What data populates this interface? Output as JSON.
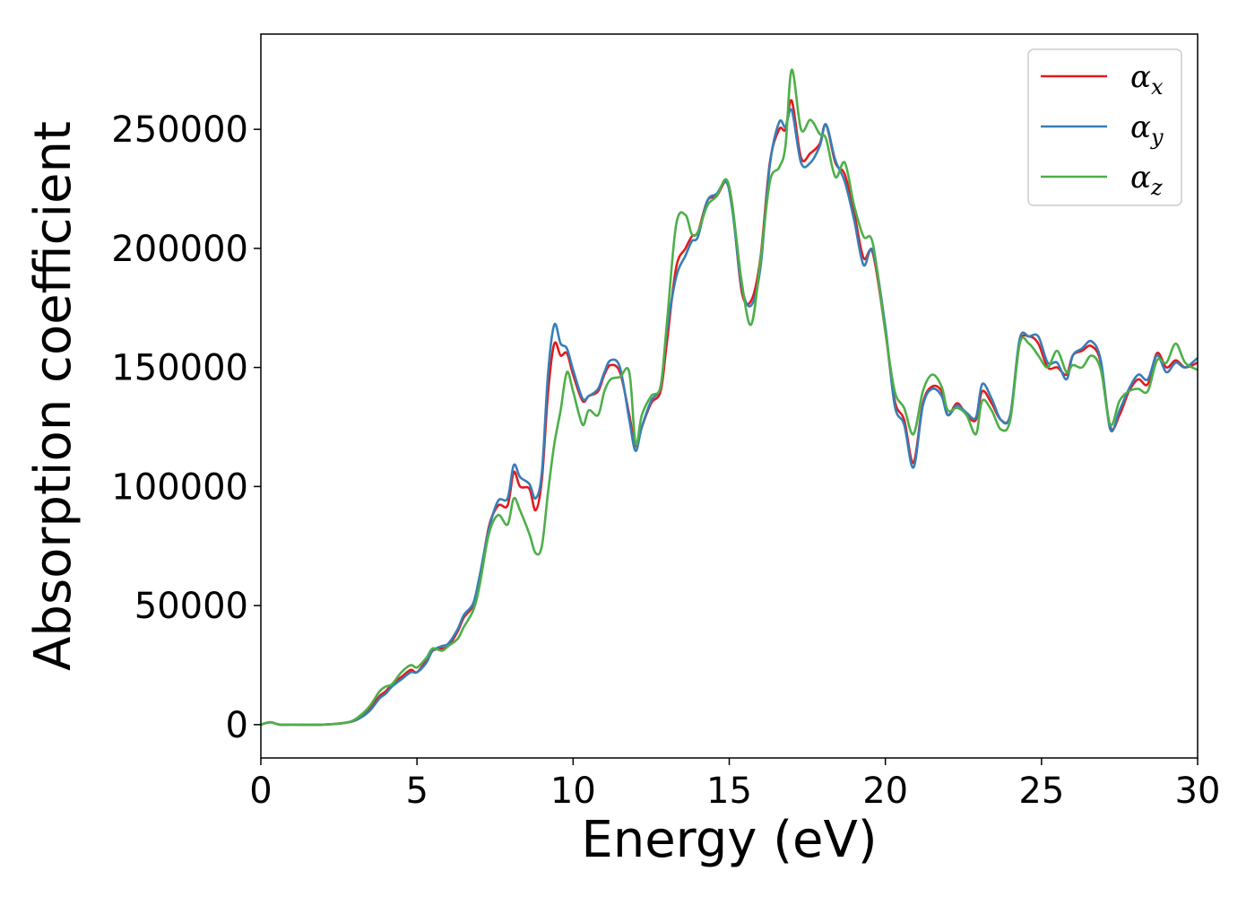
{
  "chart_data": {
    "type": "line",
    "title": "",
    "xlabel": "Energy (eV)",
    "ylabel": "Absorption coefficient",
    "xlim": [
      0,
      30
    ],
    "ylim": [
      -14000,
      290000
    ],
    "xticks": [
      0,
      5,
      10,
      15,
      20,
      25,
      30
    ],
    "yticks": [
      0,
      50000,
      100000,
      150000,
      200000,
      250000
    ],
    "grid": false,
    "legend_position": "top-right",
    "series": [
      {
        "name": "α_x",
        "legend_symbol": "α",
        "legend_subscript": "x",
        "color": "#e41a1c",
        "x": [
          0,
          0.3,
          0.6,
          1.0,
          2.0,
          2.8,
          3.2,
          3.5,
          3.8,
          4.0,
          4.2,
          4.5,
          4.8,
          5.0,
          5.3,
          5.5,
          5.8,
          6.0,
          6.3,
          6.5,
          6.8,
          7.0,
          7.3,
          7.6,
          7.9,
          8.1,
          8.3,
          8.6,
          8.8,
          9.0,
          9.2,
          9.4,
          9.6,
          9.8,
          10.0,
          10.3,
          10.5,
          10.8,
          11.0,
          11.2,
          11.5,
          11.8,
          12.0,
          12.2,
          12.5,
          12.8,
          13.0,
          13.3,
          13.6,
          13.8,
          14.0,
          14.3,
          14.6,
          14.9,
          15.1,
          15.4,
          15.7,
          16.0,
          16.3,
          16.6,
          16.8,
          17.0,
          17.3,
          17.6,
          17.9,
          18.1,
          18.4,
          18.7,
          19.0,
          19.3,
          19.6,
          20.0,
          20.3,
          20.6,
          20.9,
          21.2,
          21.5,
          21.8,
          22.0,
          22.3,
          22.6,
          22.9,
          23.1,
          23.4,
          23.7,
          24.0,
          24.3,
          24.6,
          24.9,
          25.2,
          25.5,
          25.8,
          26.0,
          26.3,
          26.6,
          26.9,
          27.2,
          27.5,
          27.8,
          28.1,
          28.4,
          28.7,
          29.0,
          29.3,
          29.6,
          30.0
        ],
        "y": [
          0,
          1000,
          0,
          0,
          0,
          1000,
          3000,
          7000,
          12000,
          14000,
          17000,
          20000,
          23000,
          22000,
          27000,
          31000,
          32000,
          33000,
          39000,
          45000,
          50000,
          60000,
          83000,
          92000,
          92000,
          106000,
          100000,
          99000,
          90000,
          103000,
          140000,
          160000,
          155000,
          156000,
          147000,
          136000,
          138000,
          140000,
          147000,
          151000,
          148000,
          130000,
          117000,
          125000,
          135000,
          140000,
          160000,
          192000,
          200000,
          205000,
          207000,
          220000,
          222000,
          228000,
          218000,
          182000,
          178000,
          196000,
          236000,
          250000,
          250000,
          262000,
          238000,
          240000,
          244000,
          252000,
          236000,
          231000,
          215000,
          196000,
          198000,
          165000,
          136000,
          128000,
          110000,
          135000,
          142000,
          140000,
          130000,
          135000,
          130000,
          128000,
          140000,
          135000,
          128000,
          130000,
          160000,
          163000,
          160000,
          150000,
          150000,
          147000,
          155000,
          157000,
          159000,
          152000,
          125000,
          130000,
          140000,
          145000,
          143000,
          156000,
          150000,
          153000,
          150000,
          152000
        ]
      },
      {
        "name": "α_y",
        "legend_symbol": "α",
        "legend_subscript": "y",
        "color": "#377eb8",
        "x": [
          0,
          0.3,
          0.6,
          1.0,
          2.0,
          2.8,
          3.2,
          3.5,
          3.8,
          4.0,
          4.2,
          4.5,
          4.8,
          5.0,
          5.3,
          5.5,
          5.8,
          6.0,
          6.3,
          6.5,
          6.8,
          7.0,
          7.3,
          7.6,
          7.9,
          8.1,
          8.3,
          8.6,
          8.8,
          9.0,
          9.2,
          9.4,
          9.6,
          9.8,
          10.0,
          10.3,
          10.5,
          10.8,
          11.0,
          11.2,
          11.5,
          11.8,
          12.0,
          12.2,
          12.5,
          12.8,
          13.0,
          13.3,
          13.6,
          13.8,
          14.0,
          14.3,
          14.6,
          14.9,
          15.1,
          15.4,
          15.7,
          16.0,
          16.3,
          16.6,
          16.8,
          17.0,
          17.3,
          17.6,
          17.9,
          18.1,
          18.4,
          18.7,
          19.0,
          19.3,
          19.6,
          20.0,
          20.3,
          20.6,
          20.9,
          21.2,
          21.5,
          21.8,
          22.0,
          22.3,
          22.6,
          22.9,
          23.1,
          23.4,
          23.7,
          24.0,
          24.3,
          24.6,
          24.9,
          25.2,
          25.5,
          25.8,
          26.0,
          26.3,
          26.6,
          26.9,
          27.2,
          27.5,
          27.8,
          28.1,
          28.4,
          28.7,
          29.0,
          29.3,
          29.6,
          30.0
        ],
        "y": [
          0,
          1000,
          0,
          0,
          0,
          1000,
          3000,
          6000,
          11000,
          13000,
          16000,
          19000,
          22000,
          22000,
          26000,
          31000,
          33000,
          34000,
          40000,
          46000,
          51000,
          62000,
          82000,
          94000,
          95000,
          109000,
          104000,
          101000,
          95000,
          106000,
          148000,
          168000,
          160000,
          158000,
          149000,
          137000,
          138000,
          141000,
          148000,
          153000,
          150000,
          128000,
          115000,
          125000,
          136000,
          142000,
          165000,
          188000,
          197000,
          203000,
          205000,
          220000,
          223000,
          228000,
          216000,
          184000,
          176000,
          192000,
          235000,
          253000,
          251000,
          258000,
          236000,
          236000,
          243000,
          252000,
          237000,
          228000,
          212000,
          193000,
          199000,
          167000,
          134000,
          126000,
          108000,
          134000,
          141000,
          138000,
          130000,
          134000,
          131000,
          129000,
          143000,
          137000,
          128000,
          130000,
          162000,
          163000,
          163000,
          152000,
          152000,
          145000,
          155000,
          158000,
          161000,
          153000,
          124000,
          132000,
          141000,
          147000,
          145000,
          155000,
          148000,
          152000,
          150000,
          154000
        ]
      },
      {
        "name": "α_z",
        "legend_symbol": "α",
        "legend_subscript": "z",
        "color": "#4daf4a",
        "x": [
          0,
          0.3,
          0.6,
          1.0,
          2.0,
          2.8,
          3.2,
          3.5,
          3.8,
          4.0,
          4.2,
          4.5,
          4.8,
          5.0,
          5.3,
          5.5,
          5.8,
          6.0,
          6.3,
          6.5,
          6.8,
          7.0,
          7.3,
          7.6,
          7.9,
          8.1,
          8.3,
          8.6,
          8.8,
          9.0,
          9.2,
          9.4,
          9.6,
          9.8,
          10.0,
          10.3,
          10.5,
          10.8,
          11.0,
          11.2,
          11.5,
          11.8,
          12.0,
          12.2,
          12.5,
          12.8,
          13.0,
          13.3,
          13.6,
          13.8,
          14.0,
          14.3,
          14.6,
          14.9,
          15.1,
          15.4,
          15.7,
          16.0,
          16.3,
          16.6,
          16.8,
          17.0,
          17.3,
          17.6,
          17.9,
          18.1,
          18.4,
          18.7,
          19.0,
          19.3,
          19.6,
          20.0,
          20.3,
          20.6,
          20.9,
          21.2,
          21.5,
          21.8,
          22.0,
          22.3,
          22.6,
          22.9,
          23.1,
          23.4,
          23.7,
          24.0,
          24.3,
          24.6,
          24.9,
          25.2,
          25.5,
          25.8,
          26.0,
          26.3,
          26.6,
          26.9,
          27.2,
          27.5,
          27.8,
          28.1,
          28.4,
          28.7,
          29.0,
          29.3,
          29.6,
          30.0
        ],
        "y": [
          0,
          1000,
          0,
          0,
          0,
          1000,
          4000,
          8000,
          14000,
          16000,
          17000,
          22000,
          25000,
          24000,
          28000,
          32000,
          31000,
          33000,
          36000,
          41000,
          48000,
          58000,
          80000,
          88000,
          84000,
          95000,
          90000,
          80000,
          72000,
          75000,
          98000,
          118000,
          132000,
          148000,
          140000,
          126000,
          132000,
          130000,
          140000,
          145000,
          146000,
          148000,
          118000,
          130000,
          138000,
          142000,
          168000,
          210000,
          214000,
          206000,
          207000,
          218000,
          222000,
          229000,
          218000,
          186000,
          168000,
          195000,
          228000,
          234000,
          243000,
          275000,
          250000,
          254000,
          248000,
          246000,
          230000,
          236000,
          218000,
          205000,
          202000,
          165000,
          140000,
          133000,
          122000,
          140000,
          147000,
          142000,
          132000,
          133000,
          130000,
          122000,
          136000,
          132000,
          124000,
          128000,
          160000,
          160000,
          155000,
          150000,
          157000,
          148000,
          151000,
          150000,
          155000,
          149000,
          126000,
          136000,
          140000,
          141000,
          140000,
          153000,
          152000,
          160000,
          152000,
          149000
        ]
      }
    ]
  }
}
